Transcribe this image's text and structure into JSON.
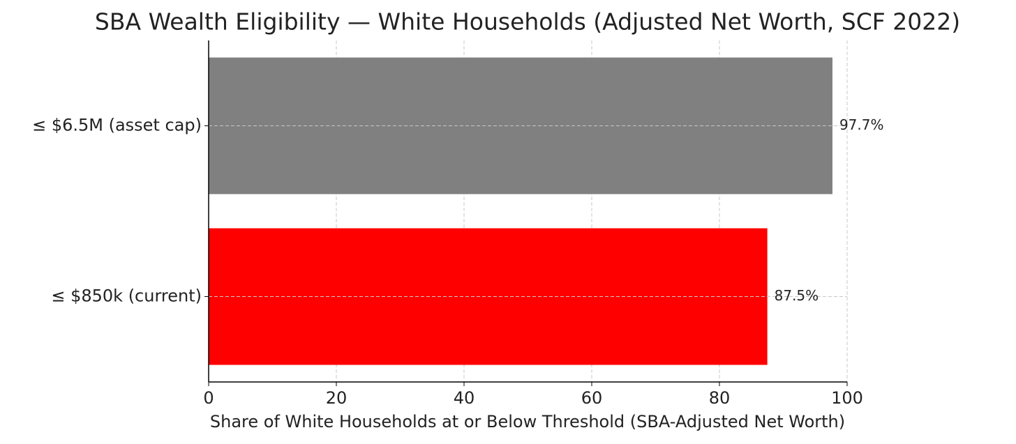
{
  "chart_data": {
    "type": "barh",
    "title": "SBA Wealth Eligibility — White Households (Adjusted Net Worth, SCF 2022)",
    "xlabel": "Share of White Households at or Below Threshold (SBA-Adjusted Net Worth)",
    "categories": [
      "≤ $6.5M (asset cap)",
      "≤ $850k (current)"
    ],
    "values": [
      97.7,
      87.5
    ],
    "value_labels": [
      "97.7%",
      "87.5%"
    ],
    "colors": [
      "#808080",
      "#ff0000"
    ],
    "xlim": [
      0,
      100
    ],
    "xticks": [
      0,
      20,
      40,
      60,
      80,
      100
    ],
    "grid": true
  }
}
